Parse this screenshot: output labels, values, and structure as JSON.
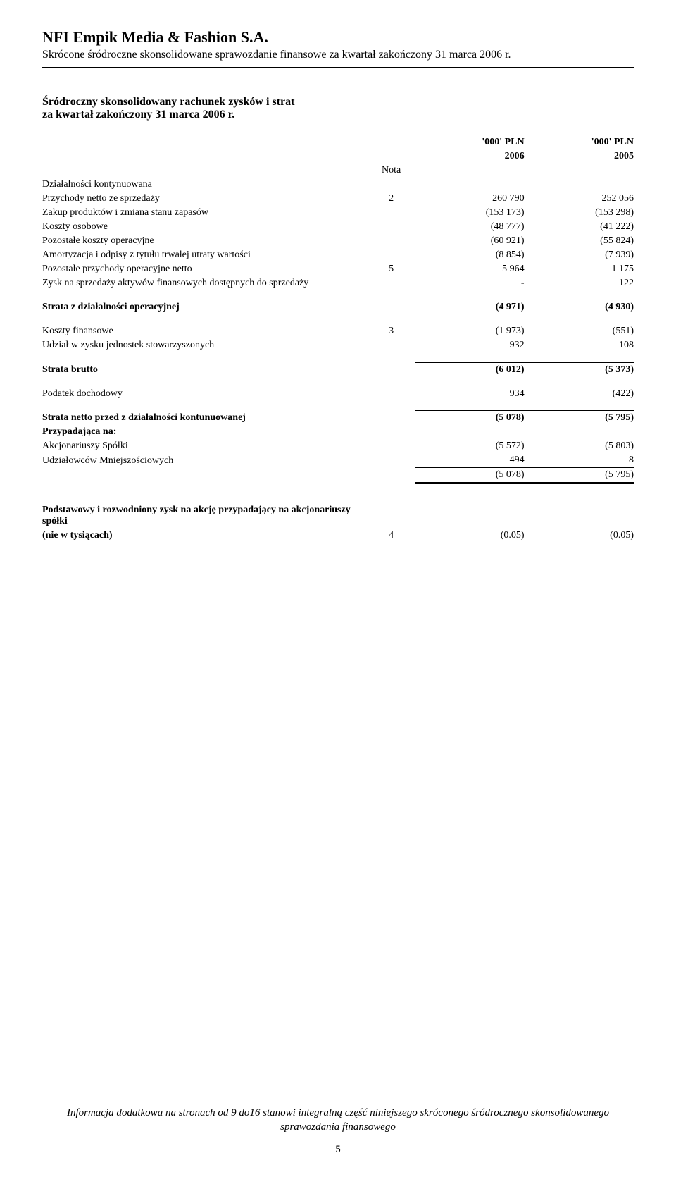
{
  "header": {
    "company": "NFI Empik Media & Fashion S.A.",
    "subtitle": "Skrócone śródroczne skonsolidowane sprawozdanie finansowe za kwartał zakończony 31 marca 2006 r."
  },
  "section": {
    "title_line1": "Śródroczny skonsolidowany rachunek zysków i strat",
    "title_line2": "za kwartał zakończony 31 marca 2006 r."
  },
  "table": {
    "nota_header": "Nota",
    "unit1": "'000' PLN",
    "unit2": "'000' PLN",
    "year1": "2006",
    "year2": "2005",
    "rows": {
      "r0": {
        "label": "Działalności kontynuowana"
      },
      "r1": {
        "label": "Przychody netto ze sprzedaży",
        "nota": "2",
        "v1": "260 790",
        "v2": "252 056"
      },
      "r2": {
        "label": "Zakup produktów i zmiana stanu zapasów",
        "v1": "(153 173)",
        "v2": "(153 298)"
      },
      "r3": {
        "label": "Koszty osobowe",
        "v1": "(48 777)",
        "v2": "(41 222)"
      },
      "r4": {
        "label": "Pozostałe koszty operacyjne",
        "v1": "(60 921)",
        "v2": "(55 824)"
      },
      "r5": {
        "label": "Amortyzacja i odpisy z tytułu trwałej utraty wartości",
        "v1": "(8 854)",
        "v2": "(7 939)"
      },
      "r6": {
        "label": "Pozostałe przychody operacyjne netto",
        "nota": "5",
        "v1": "5 964",
        "v2": "1 175"
      },
      "r7": {
        "label": "Zysk na sprzedaży aktywów finansowych dostępnych do sprzedaży",
        "v1": "-",
        "v2": "122"
      },
      "sub1": {
        "label": "Strata z działalności operacyjnej",
        "v1": "(4 971)",
        "v2": "(4 930)"
      },
      "r8": {
        "label": "Koszty finansowe",
        "nota": "3",
        "v1": "(1 973)",
        "v2": "(551)"
      },
      "r9": {
        "label": "Udział w zysku jednostek stowarzyszonych",
        "v1": "932",
        "v2": "108"
      },
      "sub2": {
        "label": "Strata brutto",
        "v1": "(6 012)",
        "v2": "(5 373)"
      },
      "r10": {
        "label": "Podatek dochodowy",
        "v1": "934",
        "v2": "(422)"
      },
      "sub3": {
        "label": "Strata netto przed z działalności kontunuowanej",
        "v1": "(5 078)",
        "v2": "(5 795)"
      },
      "r11": {
        "label": "Przypadająca na:"
      },
      "r12": {
        "label": "Akcjonariuszy Spółki",
        "v1": "(5 572)",
        "v2": "(5 803)"
      },
      "r13": {
        "label": "Udziałowców Mniejszościowych",
        "v1": "494",
        "v2": "8"
      },
      "tot": {
        "v1": "(5 078)",
        "v2": "(5 795)"
      },
      "eps1": {
        "label": "Podstawowy i rozwodniony zysk na akcję przypadający na akcjonariuszy spółki"
      },
      "eps2": {
        "label": "(nie w tysiącach)",
        "nota": "4",
        "v1": "(0.05)",
        "v2": "(0.05)"
      }
    }
  },
  "footer": {
    "note": "Informacja dodatkowa na stronach od 9 do16 stanowi integralną część niniejszego skróconego śródrocznego skonsolidowanego sprawozdania finansowego",
    "page": "5"
  }
}
